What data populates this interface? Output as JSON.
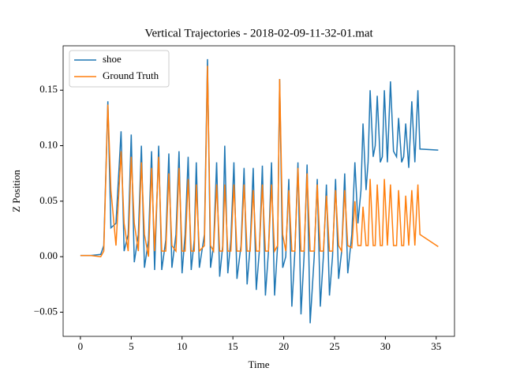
{
  "chart_data": {
    "type": "line",
    "title": "Vertical Trajectories - 2018-02-09-11-32-01.mat",
    "xlabel": "Time",
    "ylabel": "Z Position",
    "x": [
      0,
      1,
      2,
      2.3,
      2.7,
      3.0,
      3.5,
      4.0,
      4.3,
      4.7,
      5.0,
      5.3,
      5.7,
      6.0,
      6.3,
      6.7,
      7.0,
      7.3,
      7.7,
      8.0,
      8.4,
      8.7,
      9.0,
      9.4,
      9.7,
      10.0,
      10.3,
      10.6,
      10.9,
      11.2,
      11.4,
      11.7,
      12.2,
      12.5,
      12.8,
      13.1,
      13.4,
      13.7,
      14.0,
      14.2,
      14.5,
      14.8,
      15.1,
      15.4,
      15.8,
      16.1,
      16.4,
      16.7,
      17.0,
      17.3,
      17.6,
      17.9,
      18.2,
      18.5,
      18.8,
      19.1,
      19.4,
      19.6,
      19.9,
      20.2,
      20.5,
      20.8,
      21.1,
      21.4,
      21.7,
      22.0,
      22.3,
      22.6,
      23.0,
      23.3,
      23.6,
      23.9,
      24.2,
      24.5,
      24.8,
      25.1,
      25.4,
      25.7,
      26.0,
      26.3,
      26.7,
      27.0,
      27.3,
      27.6,
      27.8,
      28.1,
      28.3,
      28.5,
      28.8,
      29.0,
      29.2,
      29.5,
      29.7,
      29.9,
      30.2,
      30.5,
      30.8,
      31.1,
      31.3,
      31.6,
      31.8,
      32.0,
      32.3,
      32.6,
      32.9,
      33.2,
      33.4,
      35.2
    ],
    "series": [
      {
        "name": "shoe",
        "color": "#1f77b4",
        "values": [
          0.001,
          0.001,
          0.002,
          0.01,
          0.14,
          0.026,
          0.03,
          0.113,
          0.005,
          0.02,
          0.11,
          -0.005,
          0.02,
          0.1,
          -0.01,
          0.015,
          0.095,
          -0.012,
          0.1,
          -0.012,
          0.015,
          0.093,
          -0.01,
          0.02,
          0.095,
          -0.015,
          0.02,
          0.09,
          -0.012,
          0.015,
          0.085,
          -0.01,
          0.02,
          0.178,
          -0.01,
          0.01,
          0.085,
          -0.018,
          0.01,
          0.1,
          -0.015,
          0.015,
          0.085,
          -0.02,
          0.01,
          0.08,
          -0.025,
          0.01,
          0.08,
          -0.03,
          0.005,
          0.082,
          -0.035,
          0.005,
          0.085,
          -0.035,
          0.01,
          0.16,
          -0.01,
          0.0,
          0.07,
          -0.045,
          0.005,
          0.085,
          -0.052,
          0.0,
          0.083,
          -0.06,
          0.0,
          0.07,
          -0.045,
          0.0,
          0.065,
          -0.035,
          0.0,
          0.07,
          -0.02,
          0.005,
          0.075,
          -0.015,
          0.02,
          0.085,
          0.03,
          0.06,
          0.12,
          0.06,
          0.085,
          0.15,
          0.09,
          0.1,
          0.145,
          0.085,
          0.09,
          0.15,
          0.085,
          0.158,
          0.095,
          0.09,
          0.125,
          0.085,
          0.09,
          0.12,
          0.08,
          0.14,
          0.085,
          0.15,
          0.097,
          0.096
        ]
      },
      {
        "name": "Ground Truth",
        "color": "#ff7f0e",
        "values": [
          0.001,
          0.001,
          0.0,
          0.005,
          0.137,
          0.06,
          0.01,
          0.095,
          0.03,
          0.005,
          0.09,
          0.03,
          0.005,
          0.085,
          0.02,
          0.0,
          0.08,
          0.005,
          0.09,
          0.005,
          0.005,
          0.075,
          0.01,
          0.005,
          0.08,
          0.005,
          0.005,
          0.07,
          0.005,
          0.005,
          0.065,
          0.005,
          0.01,
          0.172,
          0.01,
          0.005,
          0.065,
          0.005,
          0.005,
          0.065,
          0.005,
          0.005,
          0.065,
          0.005,
          0.005,
          0.065,
          0.005,
          0.005,
          0.06,
          0.005,
          0.005,
          0.065,
          0.005,
          0.005,
          0.065,
          0.005,
          0.01,
          0.16,
          0.02,
          0.005,
          0.06,
          0.005,
          0.005,
          0.08,
          0.005,
          0.005,
          0.075,
          0.005,
          0.005,
          0.065,
          0.005,
          0.005,
          0.055,
          0.005,
          0.005,
          0.06,
          0.01,
          0.005,
          0.06,
          0.01,
          0.008,
          0.05,
          0.01,
          0.01,
          0.045,
          0.01,
          0.01,
          0.07,
          0.01,
          0.01,
          0.065,
          0.01,
          0.01,
          0.07,
          0.01,
          0.065,
          0.01,
          0.01,
          0.06,
          0.01,
          0.01,
          0.055,
          0.01,
          0.06,
          0.01,
          0.065,
          0.02,
          0.009
        ]
      }
    ],
    "xlim": [
      -1.7,
      36.8
    ],
    "ylim": [
      -0.0718,
      0.19
    ],
    "xticks": [
      0,
      5,
      10,
      15,
      20,
      25,
      30,
      35
    ],
    "yticks": [
      {
        "value": -0.05,
        "label": "−0.05"
      },
      {
        "value": 0,
        "label": "0.00"
      },
      0.05,
      {
        "value": 0.1,
        "label": "0.10"
      },
      0.15
    ],
    "legend": "upper left"
  }
}
